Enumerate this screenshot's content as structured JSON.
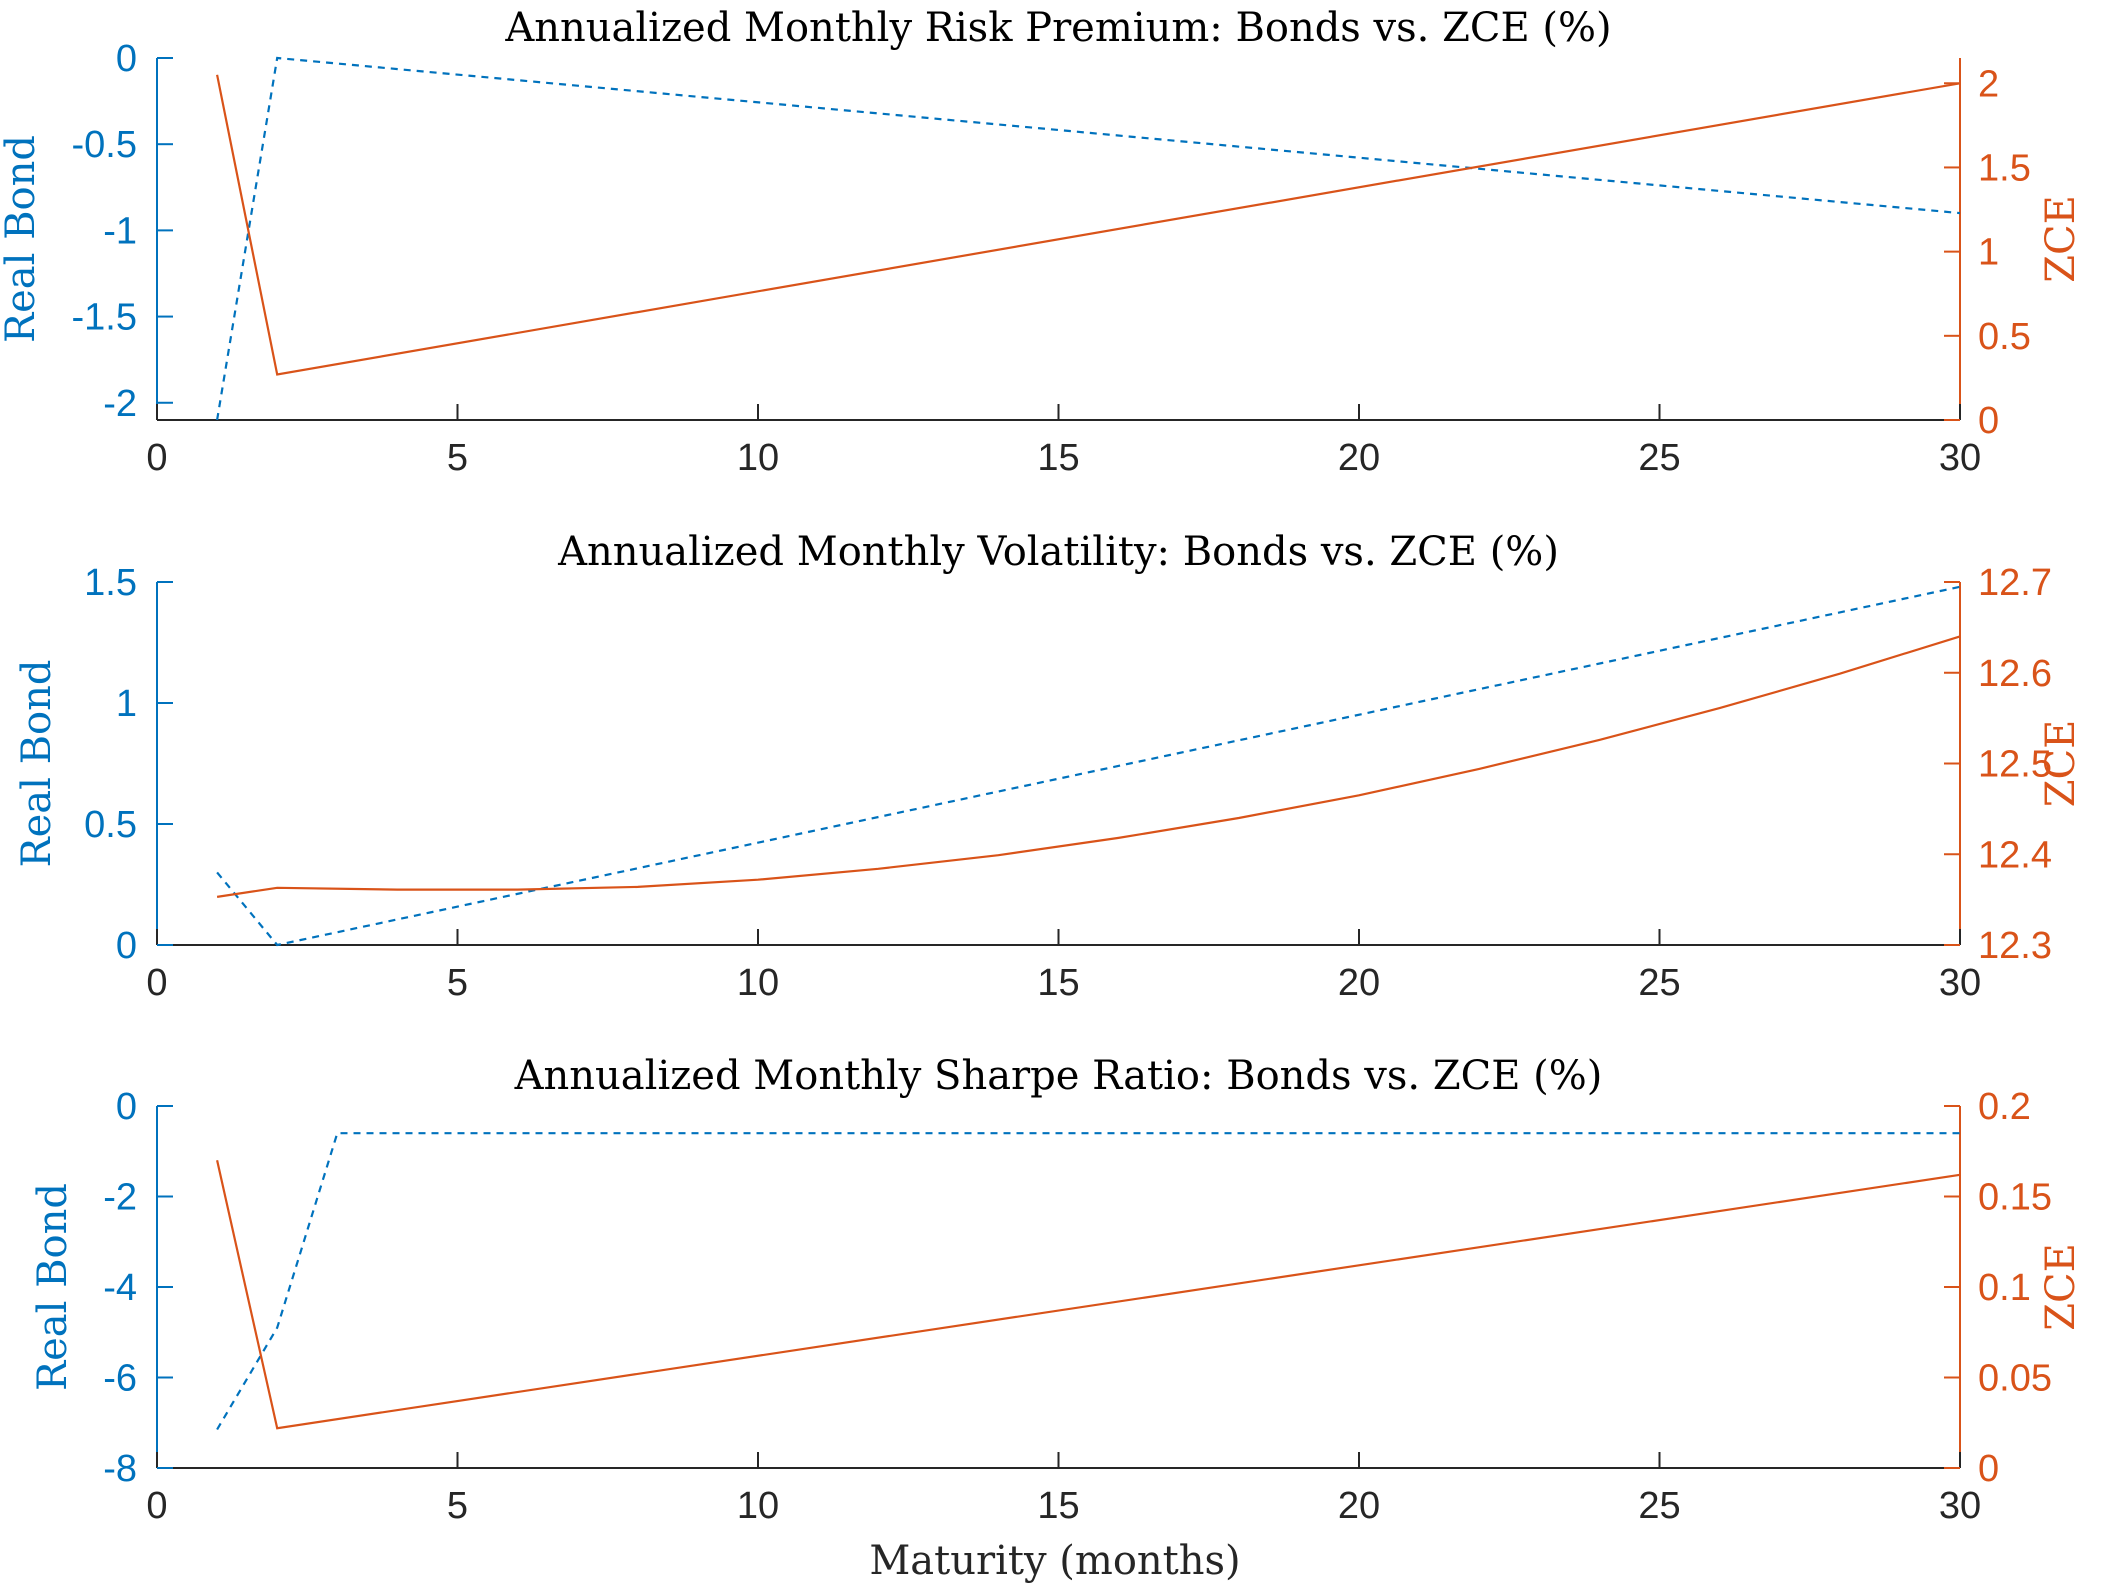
{
  "colors": {
    "left_axis": "#0072bd",
    "right_axis": "#d95319",
    "axis": "#262626"
  },
  "figure": {
    "xlabel": "Maturity (months)"
  },
  "chart_data": [
    {
      "type": "line",
      "title": "Annualized Monthly Risk Premium: Bonds vs. ZCE (%)",
      "x": [
        1,
        2,
        30
      ],
      "xlim": [
        0,
        30
      ],
      "xticks": [
        "0",
        "5",
        "10",
        "15",
        "20",
        "25",
        "30"
      ],
      "xlabel": "",
      "y_left": {
        "label": "Real Bond",
        "lim": [
          -2.1,
          0
        ],
        "ticks": [
          0,
          -0.5,
          -1,
          -1.5,
          -2
        ],
        "tick_labels": [
          "0",
          "-0.5",
          "-1",
          "-1.5",
          "-2"
        ]
      },
      "y_right": {
        "label": "ZCE",
        "lim": [
          0,
          2.15
        ],
        "ticks": [
          0,
          0.5,
          1,
          1.5,
          2
        ],
        "tick_labels": [
          "0",
          "0.5",
          "1",
          "1.5",
          "2"
        ]
      },
      "series": [
        {
          "axis": "left",
          "style": "dashed",
          "color": "#0072bd",
          "x": [
            1,
            2,
            30
          ],
          "values": [
            -2.1,
            0.0,
            -0.9
          ]
        },
        {
          "axis": "right",
          "style": "solid",
          "color": "#d95319",
          "x": [
            1,
            2,
            30
          ],
          "values": [
            2.05,
            0.27,
            2.0
          ]
        }
      ]
    },
    {
      "type": "line",
      "title": "Annualized Monthly Volatility: Bonds vs. ZCE (%)",
      "x": [
        1,
        2,
        30
      ],
      "xlim": [
        0,
        30
      ],
      "xticks": [
        "0",
        "5",
        "10",
        "15",
        "20",
        "25",
        "30"
      ],
      "xlabel": "",
      "y_left": {
        "label": "Real Bond",
        "lim": [
          0,
          1.5
        ],
        "ticks": [
          0,
          0.5,
          1,
          1.5
        ],
        "tick_labels": [
          "0",
          "0.5",
          "1",
          "1.5"
        ]
      },
      "y_right": {
        "label": "ZCE",
        "lim": [
          12.3,
          12.7
        ],
        "ticks": [
          12.3,
          12.4,
          12.5,
          12.6,
          12.7
        ],
        "tick_labels": [
          "12.3",
          "12.4",
          "12.5",
          "12.6",
          "12.7"
        ]
      },
      "series": [
        {
          "axis": "left",
          "style": "dashed",
          "color": "#0072bd",
          "x": [
            1,
            2,
            30
          ],
          "values": [
            0.3,
            0.0,
            1.48
          ]
        },
        {
          "axis": "right",
          "style": "solid",
          "color": "#d95319",
          "x": [
            1,
            2,
            4,
            6,
            8,
            10,
            12,
            14,
            16,
            18,
            20,
            22,
            24,
            26,
            28,
            30
          ],
          "values": [
            12.353,
            12.363,
            12.361,
            12.361,
            12.364,
            12.372,
            12.384,
            12.399,
            12.418,
            12.44,
            12.465,
            12.494,
            12.526,
            12.561,
            12.599,
            12.64
          ]
        }
      ]
    },
    {
      "type": "line",
      "title": "Annualized Monthly Sharpe Ratio: Bonds vs. ZCE (%)",
      "x": [
        1,
        2,
        3,
        30
      ],
      "xlim": [
        0,
        30
      ],
      "xticks": [
        "0",
        "5",
        "10",
        "15",
        "20",
        "25",
        "30"
      ],
      "xlabel": "Maturity (months)",
      "y_left": {
        "label": "Real Bond",
        "lim": [
          -8,
          0
        ],
        "ticks": [
          0,
          -2,
          -4,
          -6,
          -8
        ],
        "tick_labels": [
          "0",
          "-2",
          "-4",
          "-6",
          "-8"
        ]
      },
      "y_right": {
        "label": "ZCE",
        "lim": [
          0,
          0.2
        ],
        "ticks": [
          0,
          0.05,
          0.1,
          0.15,
          0.2
        ],
        "tick_labels": [
          "0",
          "0.05",
          "0.1",
          "0.15",
          "0.2"
        ]
      },
      "series": [
        {
          "axis": "left",
          "style": "dashed",
          "color": "#0072bd",
          "x": [
            1,
            2,
            3,
            30
          ],
          "values": [
            -7.15,
            -4.9,
            -0.6,
            -0.6
          ]
        },
        {
          "axis": "right",
          "style": "solid",
          "color": "#d95319",
          "x": [
            1,
            2,
            30
          ],
          "values": [
            0.17,
            0.022,
            0.162
          ]
        }
      ]
    }
  ]
}
